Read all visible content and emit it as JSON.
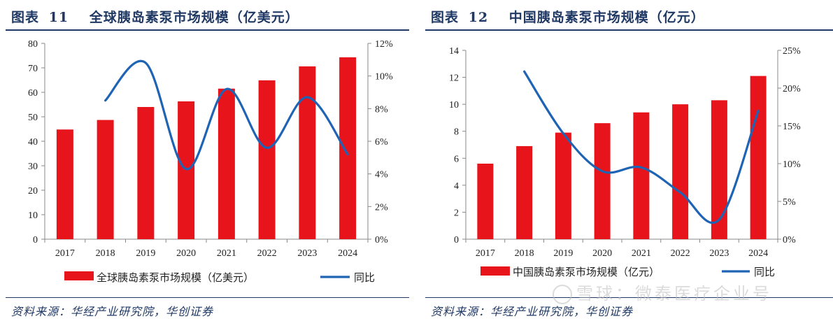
{
  "colors": {
    "bar": "#e8141b",
    "line": "#1f64b4",
    "text": "#1f3864"
  },
  "left": {
    "figure_label": "图表",
    "figure_num": "11",
    "title": "全球胰岛素泵市场规模（亿美元）",
    "source": "资料来源：华经产业研究院，华创证券"
  },
  "right": {
    "figure_label": "图表",
    "figure_num": "12",
    "title": "中国胰岛素泵市场规模（亿元）",
    "source": "资料来源：华经产业研究院，华创证券"
  },
  "watermark": {
    "text": "雪球：微泰医疗企业号"
  },
  "chart_data": [
    {
      "type": "bar",
      "title": "全球胰岛素泵市场规模（亿美元）",
      "categories": [
        "2017",
        "2018",
        "2019",
        "2020",
        "2021",
        "2022",
        "2023",
        "2024"
      ],
      "series": [
        {
          "name": "全球胰岛素泵市场规模（亿美元）",
          "type": "bar",
          "axis": "left",
          "values": [
            44.8,
            48.7,
            54.0,
            56.3,
            61.5,
            64.9,
            70.6,
            74.3
          ]
        },
        {
          "name": "同比",
          "type": "line",
          "axis": "right",
          "smooth": true,
          "values": [
            null,
            8.5,
            10.8,
            4.3,
            9.2,
            5.6,
            8.7,
            5.2
          ]
        }
      ],
      "y_left": {
        "min": 0,
        "max": 80,
        "step": 10
      },
      "y_right": {
        "min": 0,
        "max": 12,
        "step": 2,
        "unit": "%"
      },
      "legend": [
        "全球胰岛素泵市场规模（亿美元）",
        "同比"
      ],
      "legend_position": "bottom"
    },
    {
      "type": "bar",
      "title": "中国胰岛素泵市场规模（亿元）",
      "categories": [
        "2017",
        "2018",
        "2019",
        "2020",
        "2021",
        "2022",
        "2023",
        "2024"
      ],
      "series": [
        {
          "name": "中国胰岛素泵市场规模（亿元）",
          "type": "bar",
          "axis": "left",
          "values": [
            5.6,
            6.9,
            7.9,
            8.6,
            9.4,
            10.0,
            10.3,
            12.1
          ]
        },
        {
          "name": "同比",
          "type": "line",
          "axis": "right",
          "smooth": true,
          "values": [
            null,
            22.2,
            14.0,
            9.0,
            9.5,
            6.2,
            2.6,
            17.0
          ]
        }
      ],
      "y_left": {
        "min": 0,
        "max": 14,
        "step": 2
      },
      "y_right": {
        "min": 0,
        "max": 25,
        "step": 5,
        "unit": "%"
      },
      "legend": [
        "中国胰岛素泵市场规模（亿元）",
        "同比"
      ],
      "legend_position": "bottom"
    }
  ]
}
